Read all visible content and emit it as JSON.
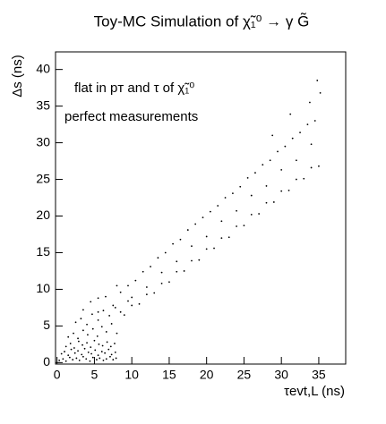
{
  "chart_data": {
    "type": "scatter",
    "title": "Toy-MC Simulation of χ̃₁⁰ → γ G̃",
    "annotations": [
      "flat in pᴛ and τ of χ̃₁⁰",
      "perfect measurements"
    ],
    "xlabel": "τevt,L (ns)",
    "ylabel": "Δs (ns)",
    "xlim": [
      -0.2,
      38.6
    ],
    "ylim": [
      -0.2,
      42.4
    ],
    "xticks": [
      0,
      5,
      10,
      15,
      20,
      25,
      30,
      35
    ],
    "yticks": [
      0,
      5,
      10,
      15,
      20,
      25,
      30,
      35,
      40
    ],
    "grid": false,
    "series": [
      {
        "color": "#000000",
        "x": [
          0.3,
          0.8,
          1.2,
          1.7,
          2.1,
          2.6,
          3.0,
          3.5,
          3.9,
          4.4,
          4.8,
          5.3,
          5.7,
          6.2,
          6.6,
          7.1,
          7.5,
          7.9,
          0.6,
          1.0,
          1.5,
          1.9,
          2.4,
          2.8,
          3.3,
          3.7,
          4.2,
          4.6,
          5.1,
          5.5,
          6.0,
          6.4,
          6.9,
          7.3,
          7.8,
          1.2,
          1.8,
          2.3,
          2.9,
          3.4,
          4.0,
          4.5,
          5.0,
          5.6,
          6.1,
          6.7,
          7.2,
          7.7,
          1.5,
          2.2,
          2.8,
          3.5,
          4.1,
          4.8,
          5.4,
          6.0,
          6.6,
          7.3,
          8.0,
          2.5,
          3.2,
          4.0,
          4.7,
          5.5,
          6.2,
          7.0,
          7.8,
          8.5,
          3.5,
          4.5,
          5.5,
          6.5,
          7.5,
          8.5,
          9.5,
          9,
          10,
          11,
          12,
          13,
          14,
          15,
          16,
          17,
          18,
          19,
          20,
          21,
          22,
          23,
          24,
          25,
          26,
          27,
          28,
          29,
          30,
          31,
          32,
          33,
          34,
          35,
          9.5,
          10.5,
          11.5,
          12.5,
          13.5,
          14.5,
          15.5,
          16.5,
          17.5,
          18.5,
          19.5,
          20.5,
          21.5,
          22.5,
          23.5,
          24.5,
          25.5,
          26.5,
          27.5,
          28.5,
          29.5,
          30.5,
          31.5,
          32.5,
          33.5,
          34.5,
          10,
          12,
          14,
          16,
          18,
          20,
          22,
          24,
          26,
          28,
          30,
          32,
          34,
          34.8,
          35.2,
          33.8,
          31.2,
          28.8,
          8.0,
          5.5
        ],
        "y": [
          0.3,
          0.5,
          0.2,
          0.7,
          0.4,
          0.6,
          0.3,
          0.8,
          0.5,
          0.2,
          0.7,
          0.4,
          0.6,
          0.3,
          0.5,
          0.8,
          0.4,
          0.6,
          1.2,
          1.5,
          1.0,
          1.8,
          1.3,
          1.6,
          1.1,
          1.9,
          1.4,
          1.2,
          1.7,
          1.0,
          1.5,
          1.3,
          1.8,
          1.1,
          1.4,
          2.2,
          2.6,
          2.0,
          2.9,
          2.4,
          2.7,
          2.1,
          3.0,
          2.5,
          2.3,
          2.8,
          2.2,
          2.6,
          3.5,
          4.0,
          3.3,
          4.4,
          3.8,
          4.6,
          3.6,
          4.9,
          4.2,
          5.3,
          4.0,
          5.5,
          6.0,
          5.2,
          6.6,
          5.8,
          7.1,
          6.4,
          7.5,
          6.9,
          7.2,
          8.3,
          6.9,
          9.0,
          7.8,
          9.6,
          8.4,
          6.5,
          7.8,
          8.0,
          9.3,
          9.5,
          10.8,
          11.0,
          12.4,
          12.5,
          13.9,
          14.0,
          15.5,
          15.6,
          17.0,
          17.1,
          18.6,
          18.7,
          20.2,
          20.3,
          21.8,
          21.9,
          23.4,
          23.5,
          25.0,
          25.1,
          26.6,
          26.8,
          10.5,
          11.2,
          12.4,
          13.1,
          14.3,
          15.0,
          16.2,
          16.8,
          18.1,
          18.9,
          19.8,
          20.6,
          21.4,
          22.5,
          23.1,
          24.0,
          25.2,
          25.9,
          27.0,
          27.6,
          28.8,
          29.5,
          30.6,
          31.4,
          32.5,
          33.0,
          8.9,
          10.3,
          12.3,
          13.8,
          15.9,
          17.2,
          19.3,
          20.7,
          22.8,
          24.1,
          26.3,
          27.6,
          29.8,
          38.5,
          36.8,
          35.5,
          33.9,
          31.0,
          10.5,
          8.8
        ]
      }
    ]
  }
}
